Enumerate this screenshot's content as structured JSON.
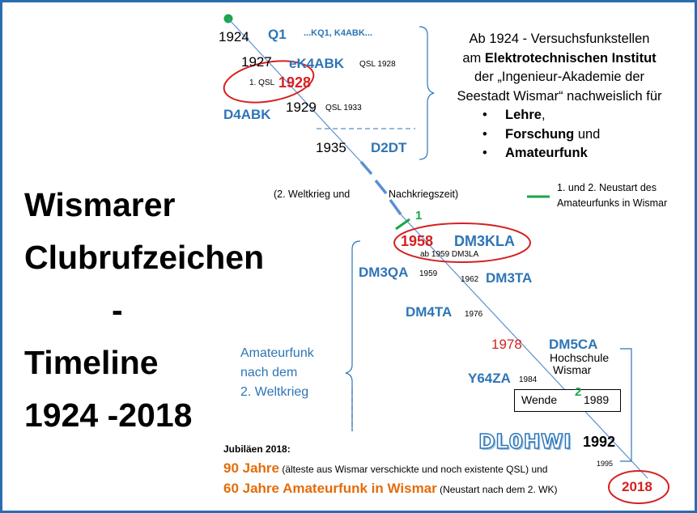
{
  "title": {
    "line1": "Wismarer",
    "line2": "Clubrufzeichen",
    "line3": "-",
    "line4": "Timeline",
    "line5": "1924 -2018"
  },
  "description": {
    "line1": "Ab 1924 - Versuchsfunkstellen",
    "line2_prefix": "am ",
    "line2_bold": "Elektrotechnischen Institut",
    "line3": "der „Ingenieur-Akademie der",
    "line4": "Seestadt Wismar“ nachweislich für",
    "bullet_symbol": "•",
    "bullets": [
      {
        "bold": "Lehre",
        "rest": ","
      },
      {
        "bold": "Forschung",
        "rest": " und"
      },
      {
        "bold": "Amateurfunk",
        "rest": ""
      }
    ]
  },
  "timeline": {
    "y1924": "1924",
    "q1": "Q1",
    "kq1": "...KQ1, K4ABK...",
    "y1927": "1927",
    "ek4abk": "eK4ABK",
    "qsl1928": "QSL 1928",
    "first_qsl": "1. QSL",
    "y1928": "1928",
    "d4abk": "D4ABK",
    "y1929": "1929",
    "qsl1933": "QSL 1933",
    "y1935": "1935",
    "d2dt": "D2DT",
    "ww2_left": "(2. Weltkrieg und",
    "ww2_right": "Nachkriegszeit)",
    "restart_legend_line1": "1. und 2. Neustart des",
    "restart_legend_line2": "Amateurfunks  in Wismar",
    "marker1": "1",
    "y1958": "1958",
    "dm3kla": "DM3KLA",
    "ab1959": "ab 1959 DM3LA",
    "dm3qa": "DM3QA",
    "y1959": "1959",
    "y1962": "1962",
    "dm3ta": "DM3TA",
    "dm4ta": "DM4TA",
    "y1976": "1976",
    "y1978": "1978",
    "dm5ca": "DM5CA",
    "hochschule": "Hochschule",
    "wismar": "Wismar",
    "y64za": "Y64ZA",
    "y1984": "1984",
    "wende": "Wende",
    "marker2": "2",
    "y1989": "1989",
    "dl0hwi": "DL0HWI",
    "y1992": "1992",
    "y1995": "1995",
    "y2018": "2018"
  },
  "postwar_label": {
    "line1": "Amateurfunk",
    "line2": "nach dem",
    "line3": "2. Weltkrieg"
  },
  "jubilee": {
    "heading": "Jubiläen 2018:",
    "line1_highlight": "90 Jahre",
    "line1_rest": " (älteste aus Wismar verschickte und noch existente QSL) und",
    "line2_highlight": "60 Jahre Amateurfunk in Wismar",
    "line2_rest": " (Neustart nach dem 2. WK)"
  },
  "colors": {
    "accent_blue": "#2e75b6",
    "highlight_red": "#d62020",
    "marker_green": "#1aa64a",
    "jubilee_orange": "#e46c0a"
  }
}
